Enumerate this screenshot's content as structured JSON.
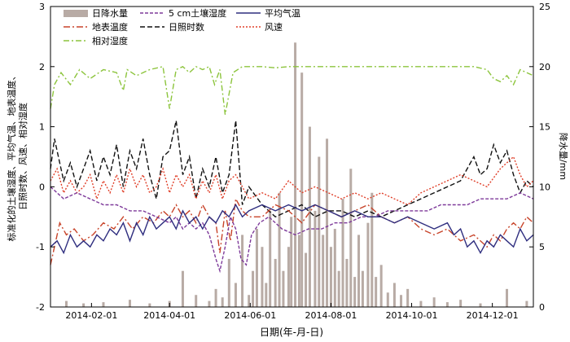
{
  "chart_data": {
    "type": "line",
    "xlabel": "日期(年-月-日)",
    "ylabel_left": "标准化的土壤湿度、平均气温、地表温度、日照时数、风速、相对湿度",
    "ylabel_right": "降水量/mm",
    "x_ticks": [
      "2014-02-01",
      "2014-04-01",
      "2014-06-01",
      "2014-08-01",
      "2014-10-01",
      "2014-12-01"
    ],
    "y_left_ticks": [
      "-2",
      "-1",
      "0",
      "1",
      "2",
      "3"
    ],
    "y_right_ticks": [
      "0",
      "5",
      "10",
      "15",
      "20",
      "25"
    ],
    "ylim_left": [
      -2,
      3
    ],
    "ylim_right": [
      0,
      25
    ],
    "xlim_days": [
      0,
      365
    ],
    "grid": false,
    "legend_position": "top-left",
    "legend": {
      "precip": "日降水量",
      "soil": "5 cm土壤湿度",
      "temp": "平均气温",
      "surface": "地表温度",
      "sunshine": "日照时数",
      "wind": "风速",
      "humidity": "相对湿度"
    },
    "colors": {
      "precip": "#b8aba5",
      "soil": "#7e3a9a",
      "temp": "#2f2e7f",
      "surface": "#c8442a",
      "sunshine": "#111111",
      "wind": "#e0402a",
      "humidity": "#8cc43c"
    },
    "series": [
      {
        "name": "相对湿度",
        "key": "humidity",
        "x": [
          0,
          3,
          8,
          15,
          22,
          30,
          40,
          50,
          55,
          58,
          65,
          75,
          85,
          90,
          95,
          100,
          105,
          110,
          115,
          120,
          124,
          128,
          132,
          138,
          145,
          150,
          160,
          170,
          180,
          190,
          200,
          210,
          220,
          230,
          240,
          250,
          260,
          270,
          280,
          290,
          300,
          310,
          320,
          330,
          335,
          340,
          345,
          350,
          355,
          360,
          365
        ],
        "y": [
          1.3,
          1.7,
          1.9,
          1.7,
          1.95,
          1.8,
          1.95,
          1.9,
          1.6,
          1.95,
          1.85,
          1.95,
          2.0,
          1.3,
          1.95,
          2.0,
          1.9,
          2.0,
          1.95,
          2.0,
          1.7,
          1.95,
          1.2,
          1.9,
          2.0,
          2.0,
          2.0,
          1.98,
          2.0,
          2.0,
          2.0,
          2.0,
          2.0,
          2.0,
          2.0,
          2.0,
          2.0,
          2.0,
          2.0,
          2.0,
          2.0,
          2.0,
          2.0,
          1.95,
          1.8,
          1.75,
          1.85,
          1.7,
          1.95,
          1.9,
          1.85
        ]
      },
      {
        "name": "日照时数",
        "key": "sunshine",
        "x": [
          0,
          3,
          6,
          10,
          15,
          20,
          25,
          30,
          35,
          40,
          45,
          50,
          55,
          60,
          65,
          70,
          75,
          80,
          85,
          90,
          95,
          100,
          105,
          110,
          115,
          120,
          125,
          130,
          135,
          140,
          145,
          150,
          160,
          170,
          180,
          190,
          200,
          210,
          220,
          230,
          240,
          250,
          260,
          270,
          280,
          290,
          300,
          310,
          320,
          325,
          330,
          335,
          340,
          345,
          350,
          355,
          360,
          365
        ],
        "y": [
          0.3,
          0.8,
          0.5,
          0.1,
          0.4,
          0.0,
          0.3,
          0.6,
          0.1,
          0.5,
          0.2,
          0.7,
          0.0,
          0.6,
          0.3,
          0.8,
          0.2,
          -0.2,
          0.5,
          0.6,
          1.1,
          0.2,
          0.5,
          -0.2,
          0.3,
          0.0,
          0.5,
          -0.1,
          0.2,
          1.1,
          -0.3,
          0.0,
          -0.3,
          -0.5,
          -0.4,
          -0.3,
          -0.5,
          -0.4,
          -0.4,
          -0.5,
          -0.4,
          -0.5,
          -0.4,
          -0.3,
          -0.2,
          -0.1,
          0.0,
          0.1,
          0.5,
          0.2,
          0.3,
          0.7,
          0.4,
          0.6,
          0.2,
          -0.1,
          0.1,
          0.0
        ]
      },
      {
        "name": "风速",
        "key": "wind",
        "x": [
          0,
          5,
          10,
          15,
          20,
          25,
          30,
          35,
          40,
          45,
          50,
          55,
          60,
          65,
          70,
          75,
          80,
          85,
          90,
          95,
          100,
          105,
          110,
          115,
          120,
          125,
          130,
          135,
          140,
          150,
          160,
          170,
          180,
          190,
          200,
          210,
          220,
          230,
          240,
          250,
          260,
          270,
          280,
          290,
          300,
          310,
          320,
          330,
          340,
          350,
          355,
          360,
          365
        ],
        "y": [
          0.1,
          0.3,
          -0.1,
          0.1,
          -0.1,
          0.0,
          0.2,
          -0.2,
          0.1,
          -0.1,
          0.2,
          -0.1,
          0.3,
          0.0,
          0.2,
          -0.1,
          0.0,
          0.3,
          -0.1,
          0.2,
          0.0,
          0.2,
          -0.2,
          0.1,
          -0.1,
          0.2,
          -0.2,
          0.1,
          0.2,
          -0.2,
          -0.1,
          -0.2,
          0.1,
          -0.1,
          0.0,
          -0.1,
          -0.2,
          -0.1,
          -0.2,
          -0.1,
          -0.2,
          -0.3,
          -0.1,
          0.0,
          0.1,
          0.2,
          0.1,
          0.0,
          0.3,
          0.5,
          0.2,
          0.0,
          0.1
        ]
      },
      {
        "name": "地表温度",
        "key": "surface",
        "x": [
          0,
          3,
          7,
          12,
          18,
          25,
          32,
          40,
          48,
          55,
          62,
          70,
          78,
          85,
          90,
          95,
          100,
          105,
          110,
          115,
          120,
          125,
          128,
          132,
          136,
          140,
          145,
          150,
          160,
          170,
          180,
          190,
          200,
          210,
          220,
          230,
          240,
          250,
          260,
          270,
          280,
          290,
          300,
          310,
          320,
          330,
          335,
          340,
          345,
          350,
          355,
          360,
          365
        ],
        "y": [
          -1.3,
          -1.0,
          -0.6,
          -0.8,
          -0.7,
          -0.9,
          -0.8,
          -0.6,
          -0.7,
          -0.5,
          -0.7,
          -0.5,
          -0.6,
          -0.4,
          -0.5,
          -0.3,
          -0.5,
          -0.4,
          -0.6,
          -0.3,
          -0.5,
          -0.6,
          -1.1,
          -0.4,
          -0.9,
          -0.2,
          -0.4,
          -0.5,
          -0.5,
          -0.3,
          -0.4,
          -0.6,
          -0.3,
          -0.4,
          -0.5,
          -0.4,
          -0.3,
          -0.5,
          -0.6,
          -0.5,
          -0.7,
          -0.8,
          -0.7,
          -0.9,
          -0.8,
          -1.0,
          -0.8,
          -0.9,
          -0.7,
          -0.6,
          -0.7,
          -0.5,
          -0.6
        ]
      },
      {
        "name": "5 cm土壤湿度",
        "key": "soil",
        "x": [
          0,
          5,
          10,
          20,
          30,
          40,
          50,
          60,
          70,
          80,
          90,
          95,
          100,
          105,
          110,
          115,
          120,
          125,
          128,
          132,
          136,
          140,
          144,
          148,
          152,
          158,
          165,
          175,
          185,
          195,
          205,
          215,
          225,
          235,
          245,
          255,
          265,
          275,
          285,
          295,
          305,
          315,
          325,
          335,
          345,
          355,
          365
        ],
        "y": [
          0.0,
          -0.1,
          -0.2,
          -0.1,
          -0.2,
          -0.3,
          -0.3,
          -0.4,
          -0.4,
          -0.5,
          -0.6,
          -0.5,
          -0.7,
          -0.6,
          -0.7,
          -0.6,
          -0.8,
          -1.2,
          -1.4,
          -1.0,
          -0.5,
          -0.7,
          -1.2,
          -1.3,
          -0.8,
          -0.6,
          -0.5,
          -0.7,
          -0.8,
          -0.7,
          -0.7,
          -0.6,
          -0.6,
          -0.5,
          -0.5,
          -0.4,
          -0.4,
          -0.4,
          -0.4,
          -0.3,
          -0.3,
          -0.3,
          -0.2,
          -0.2,
          -0.2,
          -0.1,
          -0.2
        ]
      },
      {
        "name": "平均气温",
        "key": "temp",
        "x": [
          0,
          5,
          10,
          15,
          20,
          25,
          30,
          35,
          40,
          45,
          50,
          55,
          60,
          65,
          70,
          75,
          80,
          85,
          90,
          95,
          100,
          105,
          110,
          115,
          120,
          125,
          130,
          135,
          140,
          145,
          150,
          160,
          170,
          180,
          190,
          200,
          210,
          220,
          230,
          240,
          250,
          260,
          270,
          280,
          290,
          300,
          305,
          310,
          315,
          320,
          325,
          330,
          335,
          340,
          345,
          350,
          355,
          360,
          365
        ],
        "y": [
          -1.0,
          -0.9,
          -1.1,
          -0.8,
          -1.0,
          -0.9,
          -1.0,
          -0.8,
          -0.9,
          -0.7,
          -0.8,
          -0.6,
          -0.9,
          -0.6,
          -0.8,
          -0.5,
          -0.7,
          -0.6,
          -0.5,
          -0.7,
          -0.4,
          -0.6,
          -0.5,
          -0.7,
          -0.5,
          -0.6,
          -0.4,
          -0.5,
          -0.3,
          -0.5,
          -0.4,
          -0.3,
          -0.4,
          -0.3,
          -0.4,
          -0.3,
          -0.4,
          -0.5,
          -0.4,
          -0.5,
          -0.5,
          -0.6,
          -0.5,
          -0.6,
          -0.7,
          -0.6,
          -0.8,
          -0.7,
          -1.0,
          -0.9,
          -1.1,
          -0.9,
          -1.0,
          -0.8,
          -0.9,
          -1.0,
          -0.7,
          -0.9,
          -0.8
        ]
      }
    ],
    "precipitation": {
      "name": "日降水量",
      "key": "precip",
      "axis": "right",
      "x": [
        12,
        25,
        40,
        60,
        75,
        90,
        100,
        110,
        120,
        125,
        130,
        135,
        140,
        145,
        150,
        153,
        156,
        160,
        163,
        166,
        170,
        173,
        176,
        180,
        182,
        185,
        188,
        190,
        193,
        196,
        200,
        203,
        206,
        209,
        212,
        215,
        218,
        221,
        224,
        227,
        230,
        233,
        236,
        240,
        243,
        246,
        250,
        255,
        260,
        265,
        270,
        280,
        290,
        300,
        310,
        325,
        345,
        360
      ],
      "y": [
        0.5,
        0.3,
        0.4,
        0.6,
        0.3,
        0.5,
        3.0,
        1.0,
        0.5,
        1.5,
        0.8,
        4.0,
        2.0,
        6.0,
        1.0,
        3.0,
        6.5,
        5.0,
        2.0,
        8.0,
        4.0,
        9.5,
        3.0,
        5.0,
        7.5,
        22.0,
        6.0,
        19.5,
        4.5,
        15.0,
        8.0,
        12.5,
        6.0,
        14.0,
        5.0,
        6.5,
        3.0,
        9.0,
        4.0,
        11.5,
        2.5,
        6.0,
        3.0,
        7.0,
        9.5,
        2.5,
        3.5,
        1.2,
        2.0,
        1.0,
        1.5,
        0.5,
        0.8,
        0.4,
        0.6,
        0.3,
        1.5,
        0.5
      ]
    }
  }
}
